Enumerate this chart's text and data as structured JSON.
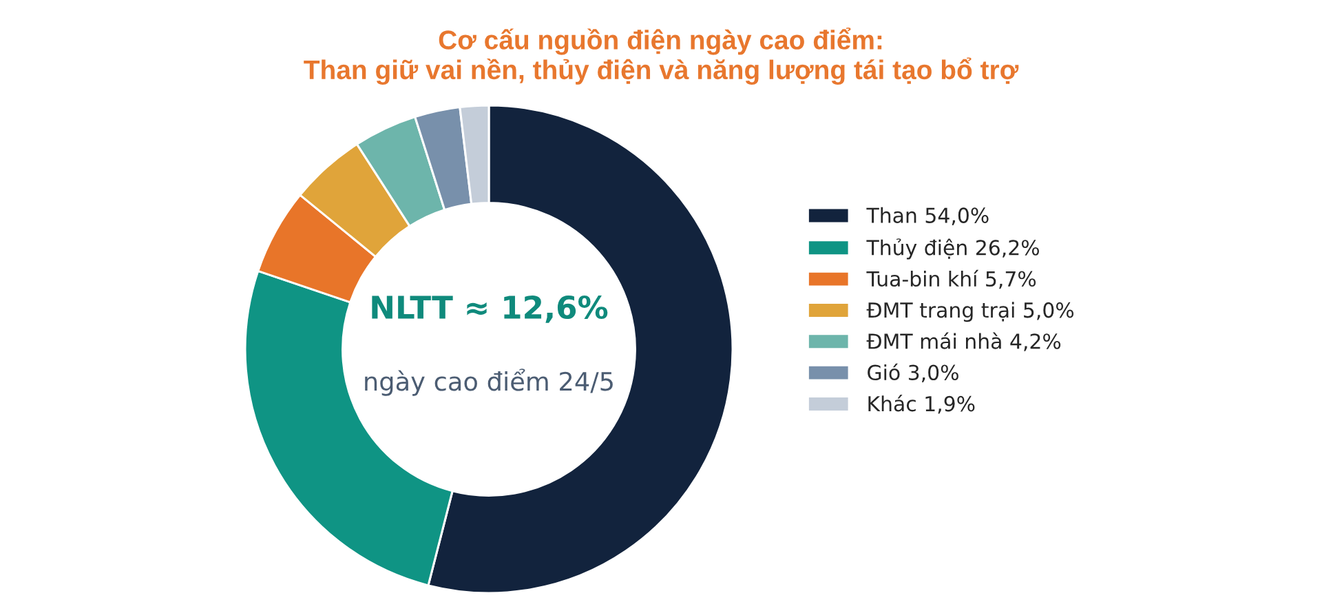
{
  "chart_data": {
    "type": "donut",
    "title": "Cơ cấu nguồn điện ngày cao điểm:\nThan giữ vai nền, thủy điện và năng lượng tái tạo bổ trợ",
    "categories": [
      "Than 54,0%",
      "Thủy điện 26,2%",
      "Tua-bin khí 5,7%",
      "ĐMT trang trại 5,0%",
      "ĐMT mái nhà 4,2%",
      "Gió 3,0%",
      "Khác 1,9%"
    ],
    "values": [
      54.0,
      26.2,
      5.7,
      5.0,
      4.2,
      3.0,
      1.9
    ],
    "colors": [
      "#12233d",
      "#0f9484",
      "#e87529",
      "#e0a43a",
      "#6db5ab",
      "#7890ab",
      "#c4cdd9"
    ],
    "annotations": [
      "NLTT ≈ 12,6%",
      "ngày cao điểm 24/5"
    ],
    "legend": "right"
  }
}
